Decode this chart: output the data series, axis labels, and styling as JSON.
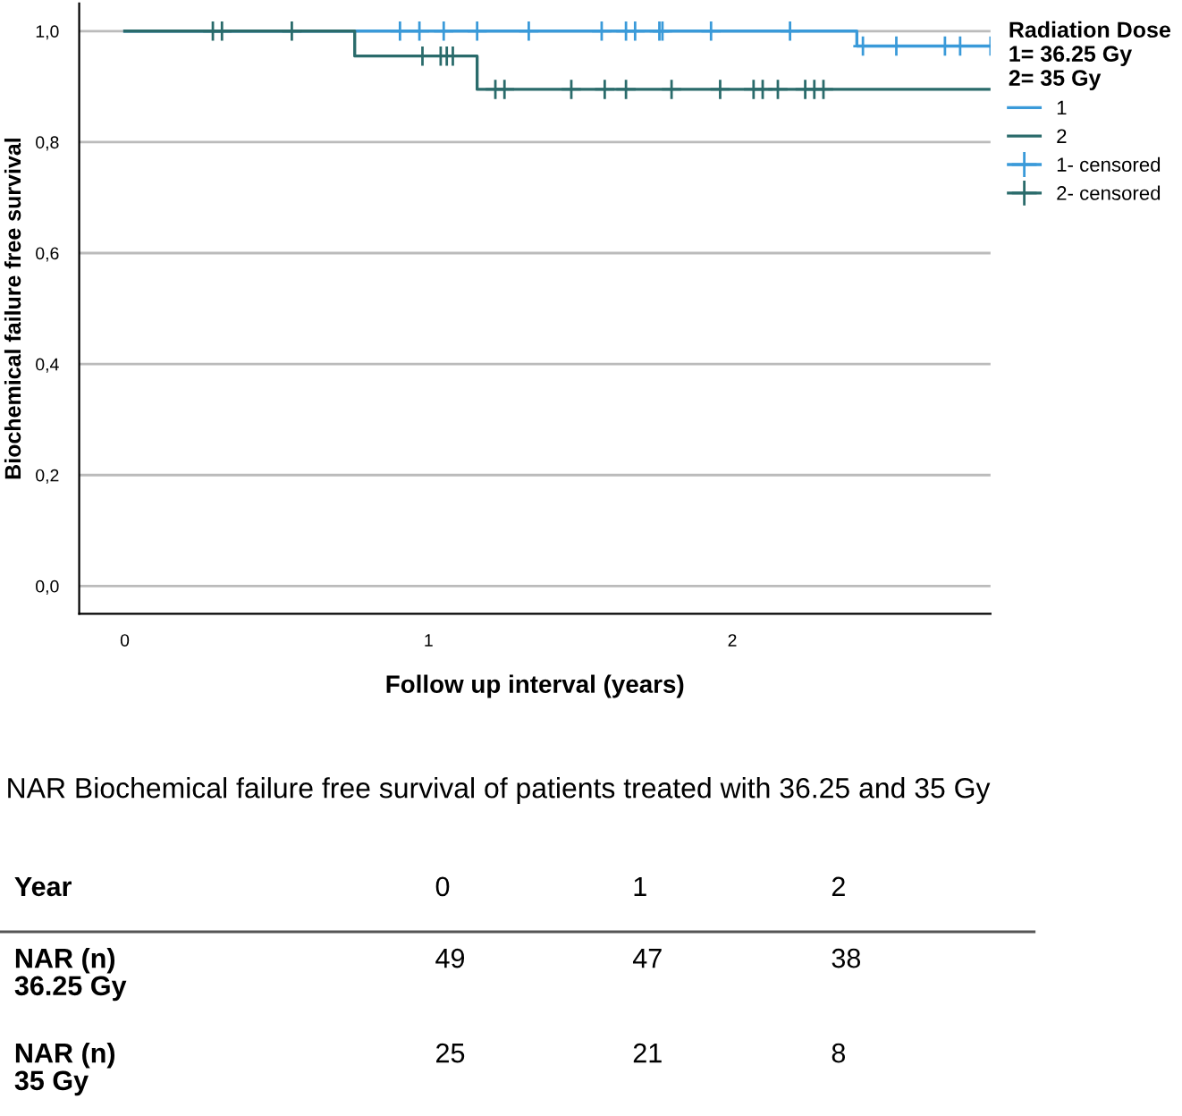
{
  "chart_data": {
    "type": "step",
    "ylabel": "Biochemical failure free survival",
    "xlabel": "Follow up interval (years)",
    "legend_title": "Radiation Dose\n1= 36.25 Gy\n2= 35 Gy",
    "legend": "right",
    "grid": "y",
    "xlim": [
      -0.15,
      2.85
    ],
    "xticks": [
      0,
      1,
      2
    ],
    "ylim": [
      -0.05,
      1.05
    ],
    "yticks": [
      {
        "value": 0,
        "label": "0,0"
      },
      {
        "value": 0.2,
        "label": "0,2"
      },
      {
        "value": 0.4,
        "label": "0,4"
      },
      {
        "value": 0.6,
        "label": "0,6"
      },
      {
        "value": 0.8,
        "label": "0,8"
      },
      {
        "value": 1.0,
        "label": "1,0"
      }
    ],
    "series": [
      {
        "name": "1",
        "color": "#3a9ad9",
        "x": [
          0,
          2.41,
          2.85
        ],
        "values": [
          1.0,
          0.973,
          0.973
        ]
      },
      {
        "name": "2",
        "color": "#2a6b6b",
        "x": [
          0,
          0.757,
          1.16,
          2.85
        ],
        "values": [
          1.0,
          0.955,
          0.895,
          0.895
        ]
      },
      {
        "name": "1- censored",
        "type": "scatter",
        "marker": "cross",
        "color": "#3a9ad9",
        "x": [
          0.906,
          0.97,
          1.05,
          1.16,
          1.33,
          1.57,
          1.65,
          1.68,
          1.76,
          1.77,
          1.93,
          2.19,
          2.43,
          2.54,
          2.7,
          2.75,
          2.85
        ],
        "values": [
          1.0,
          1.0,
          1.0,
          1.0,
          1.0,
          1.0,
          1.0,
          1.0,
          1.0,
          1.0,
          1.0,
          1.0,
          0.973,
          0.973,
          0.973,
          0.973,
          0.973
        ]
      },
      {
        "name": "2- censored",
        "type": "scatter",
        "marker": "cross",
        "color": "#2a6b6b",
        "x": [
          0.29,
          0.32,
          0.55,
          0.98,
          1.04,
          1.06,
          1.08,
          1.22,
          1.25,
          1.47,
          1.58,
          1.65,
          1.8,
          1.96,
          2.07,
          2.1,
          2.15,
          2.24,
          2.27,
          2.3
        ],
        "values": [
          1.0,
          1.0,
          1.0,
          0.955,
          0.955,
          0.955,
          0.955,
          0.895,
          0.895,
          0.895,
          0.895,
          0.895,
          0.895,
          0.895,
          0.895,
          0.895,
          0.895,
          0.895,
          0.895,
          0.895
        ]
      }
    ],
    "annotations": [
      "NAR Biochemical failure free survival of patients treated with 36.25 and 35 Gy",
      "Year",
      "0",
      "1",
      "2",
      "NAR (n)\n36.25 Gy",
      "49",
      "47",
      "38",
      "NAR (n)\n35 Gy",
      "25",
      "21",
      "8"
    ]
  }
}
